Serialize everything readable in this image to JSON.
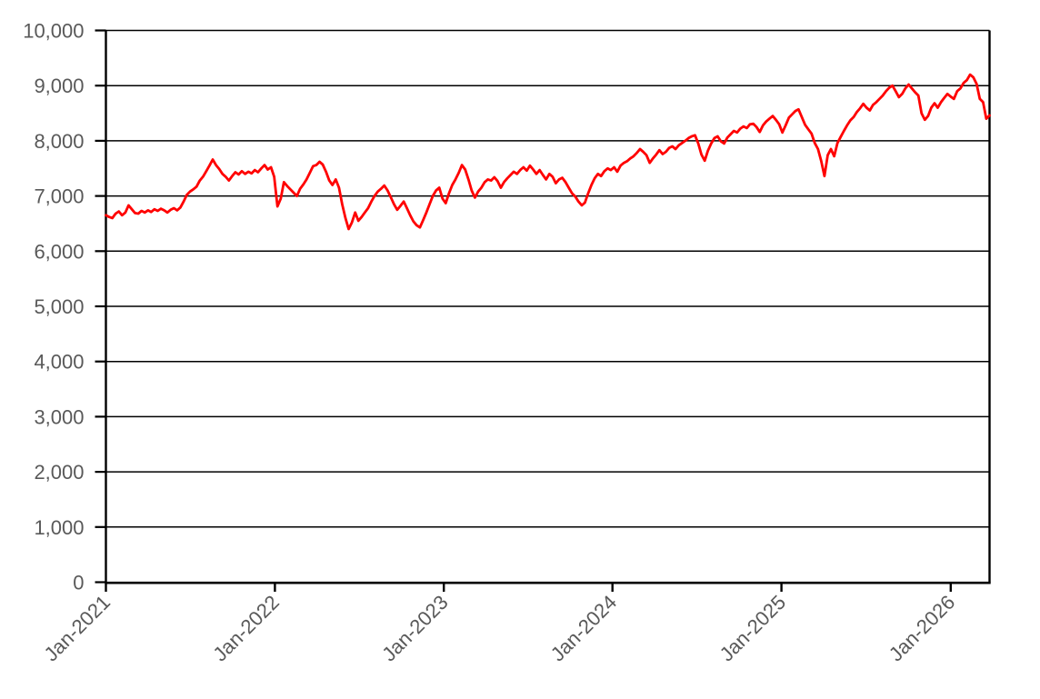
{
  "chart_data": {
    "type": "line",
    "title": "",
    "legend": false,
    "grid": true,
    "background": "#FFFFFF",
    "axes": {
      "y": {
        "lim": [
          0,
          10000
        ],
        "tick_values": [
          0,
          1000,
          2000,
          3000,
          4000,
          5000,
          6000,
          7000,
          8000,
          9000,
          10000
        ],
        "tick_labels": [
          "0",
          "1,000",
          "2,000",
          "3,000",
          "4,000",
          "5,000",
          "6,000",
          "7,000",
          "8,000",
          "9,000",
          "10,000"
        ],
        "label_color": "#595959",
        "line_color": "#000000"
      },
      "x": {
        "tick_labels": [
          "Jan-2021",
          "Jan-2022",
          "Jan-2023",
          "Jan-2024",
          "Jan-2025",
          "Jan-2026"
        ],
        "tick_positions_weeks": [
          0,
          52.2,
          104.4,
          156.5,
          208.7,
          261
        ],
        "total_weeks": 273,
        "label_rotation_deg": -45,
        "label_color": "#595959",
        "line_color": "#000000"
      }
    },
    "series": [
      {
        "name": "series1",
        "color": "#FF0000",
        "sampling": "weekly-estimated",
        "values": [
          6650,
          6620,
          6600,
          6680,
          6720,
          6650,
          6700,
          6830,
          6760,
          6690,
          6680,
          6730,
          6700,
          6740,
          6710,
          6760,
          6730,
          6770,
          6740,
          6700,
          6750,
          6780,
          6740,
          6790,
          6900,
          7020,
          7080,
          7120,
          7170,
          7280,
          7350,
          7450,
          7550,
          7660,
          7560,
          7490,
          7400,
          7350,
          7280,
          7360,
          7430,
          7390,
          7450,
          7400,
          7440,
          7410,
          7470,
          7430,
          7500,
          7560,
          7480,
          7520,
          7350,
          6810,
          6950,
          7250,
          7180,
          7120,
          7060,
          7000,
          7130,
          7210,
          7300,
          7420,
          7540,
          7560,
          7620,
          7570,
          7440,
          7280,
          7200,
          7300,
          7150,
          6850,
          6600,
          6400,
          6520,
          6700,
          6550,
          6620,
          6700,
          6780,
          6900,
          7000,
          7080,
          7130,
          7190,
          7100,
          6980,
          6850,
          6750,
          6820,
          6900,
          6780,
          6650,
          6540,
          6470,
          6430,
          6560,
          6700,
          6850,
          7000,
          7100,
          7150,
          6950,
          6870,
          7050,
          7200,
          7300,
          7420,
          7560,
          7480,
          7300,
          7100,
          6970,
          7080,
          7150,
          7250,
          7300,
          7280,
          7340,
          7270,
          7150,
          7250,
          7320,
          7380,
          7440,
          7400,
          7470,
          7520,
          7460,
          7550,
          7480,
          7400,
          7470,
          7380,
          7300,
          7400,
          7350,
          7230,
          7300,
          7330,
          7250,
          7150,
          7050,
          6990,
          6900,
          6830,
          6880,
          7050,
          7200,
          7320,
          7400,
          7360,
          7450,
          7500,
          7470,
          7520,
          7440,
          7550,
          7600,
          7630,
          7680,
          7720,
          7780,
          7850,
          7800,
          7740,
          7600,
          7680,
          7750,
          7830,
          7760,
          7800,
          7870,
          7900,
          7850,
          7920,
          7960,
          8000,
          8050,
          8080,
          8100,
          7950,
          7750,
          7640,
          7820,
          7950,
          8050,
          8080,
          7990,
          7950,
          8060,
          8120,
          8180,
          8150,
          8220,
          8260,
          8230,
          8300,
          8310,
          8250,
          8160,
          8280,
          8350,
          8400,
          8450,
          8380,
          8300,
          8150,
          8280,
          8420,
          8480,
          8540,
          8570,
          8430,
          8290,
          8210,
          8130,
          7960,
          7850,
          7630,
          7360,
          7740,
          7850,
          7720,
          7960,
          8070,
          8180,
          8280,
          8370,
          8430,
          8520,
          8590,
          8670,
          8600,
          8550,
          8650,
          8700,
          8760,
          8820,
          8900,
          8960,
          9000,
          8900,
          8790,
          8850,
          8950,
          9020,
          8950,
          8880,
          8820,
          8500,
          8380,
          8450,
          8600,
          8680,
          8600,
          8700,
          8780,
          8850,
          8800,
          8760,
          8900,
          8950,
          9050,
          9100,
          9200,
          9150,
          9030,
          8760,
          8700,
          8400,
          8460
        ]
      }
    ]
  }
}
